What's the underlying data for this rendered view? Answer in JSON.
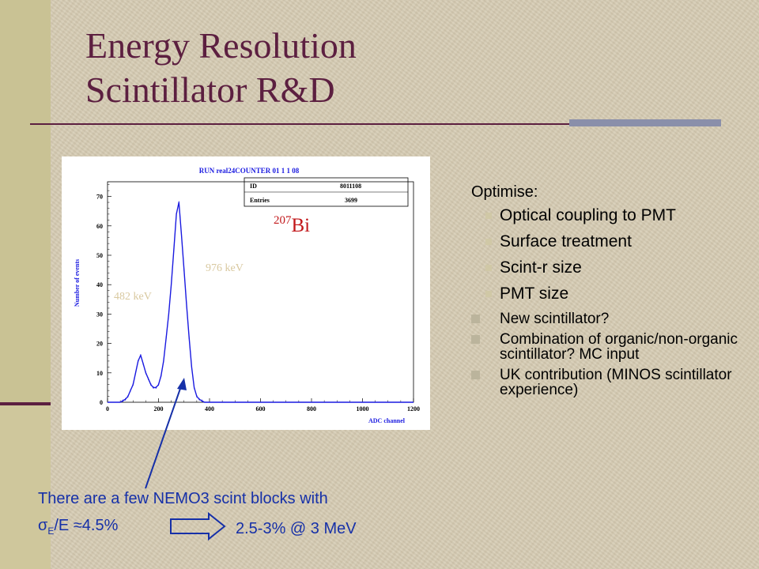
{
  "slide": {
    "title_lines": [
      "Energy Resolution",
      "Scintillator R&D"
    ],
    "colors": {
      "title": "#5c1f40",
      "accent_bar": "#8a8faa",
      "note_text": "#1630a8",
      "isotope_label": "#c2181b"
    }
  },
  "plot": {
    "title": "RUN real24COUNTER  01   1   1   08",
    "stats": [
      {
        "key": "ID",
        "value": "8011108"
      },
      {
        "key": "Entries",
        "value": "3699"
      }
    ],
    "isotope": {
      "mass": "207",
      "symbol": "Bi"
    },
    "peak_labels": [
      "482 keV",
      "976 keV"
    ]
  },
  "chart_data": {
    "type": "area",
    "title": "RUN real24COUNTER  01   1   1   08",
    "xlabel": "ADC channel",
    "ylabel": "Number of events",
    "xlim": [
      0,
      1200
    ],
    "ylim": [
      0,
      75
    ],
    "x_ticks": [
      0,
      200,
      400,
      600,
      800,
      1000,
      1200
    ],
    "y_ticks": [
      0,
      10,
      20,
      30,
      40,
      50,
      60,
      70
    ],
    "grid": false,
    "series": [
      {
        "color": "#1a1ae0",
        "x": [
          0,
          10,
          20,
          30,
          40,
          50,
          60,
          70,
          80,
          90,
          100,
          110,
          120,
          130,
          140,
          150,
          160,
          170,
          180,
          190,
          200,
          210,
          220,
          230,
          240,
          250,
          260,
          270,
          280,
          290,
          300,
          310,
          320,
          330,
          340,
          350,
          360,
          370,
          380,
          390,
          400,
          420,
          440,
          460,
          480,
          500,
          520,
          540,
          560,
          580,
          600,
          620,
          640,
          660,
          680,
          700,
          720,
          740,
          760,
          780,
          800,
          820,
          840,
          860,
          880,
          900,
          920,
          940,
          960,
          980,
          1000,
          1020,
          1040,
          1060,
          1080,
          1100,
          1120,
          1140,
          1160,
          1180,
          1200
        ],
        "values": [
          0,
          0,
          0,
          0,
          0,
          0,
          0.5,
          1,
          2,
          4,
          6,
          10,
          14,
          16,
          13,
          10,
          8,
          6,
          5,
          5,
          6,
          9,
          14,
          22,
          30,
          40,
          52,
          64,
          68,
          57,
          45,
          33,
          22,
          12,
          5,
          2,
          1,
          0.5,
          0,
          0,
          0,
          0,
          0,
          0,
          0,
          0,
          0,
          0,
          0,
          0,
          0,
          0,
          0,
          0,
          0,
          0,
          0,
          0,
          0,
          0,
          0,
          0,
          0,
          0,
          0,
          0,
          0,
          0,
          0,
          0,
          0,
          0,
          0,
          0,
          0,
          0,
          0,
          0,
          0,
          0,
          0
        ]
      }
    ],
    "annotations": [
      "482 keV",
      "976 keV",
      "207Bi"
    ]
  },
  "note": {
    "text1": "There are a few NEMO3 scint blocks with",
    "sigma": "σ",
    "sigma_sub": "E",
    "text2": "/E ≈4.5%",
    "result": "2.5-3% @ 3 MeV"
  },
  "right_list": {
    "heading": "Optimise:",
    "sub_items": [
      "Optical coupling to PMT",
      "Surface treatment",
      "Scint-r size",
      "PMT size"
    ],
    "items": [
      "New scintillator?",
      "Combination of organic/non-organic scintillator? MC input",
      "UK contribution (MINOS scintillator experience)"
    ]
  }
}
